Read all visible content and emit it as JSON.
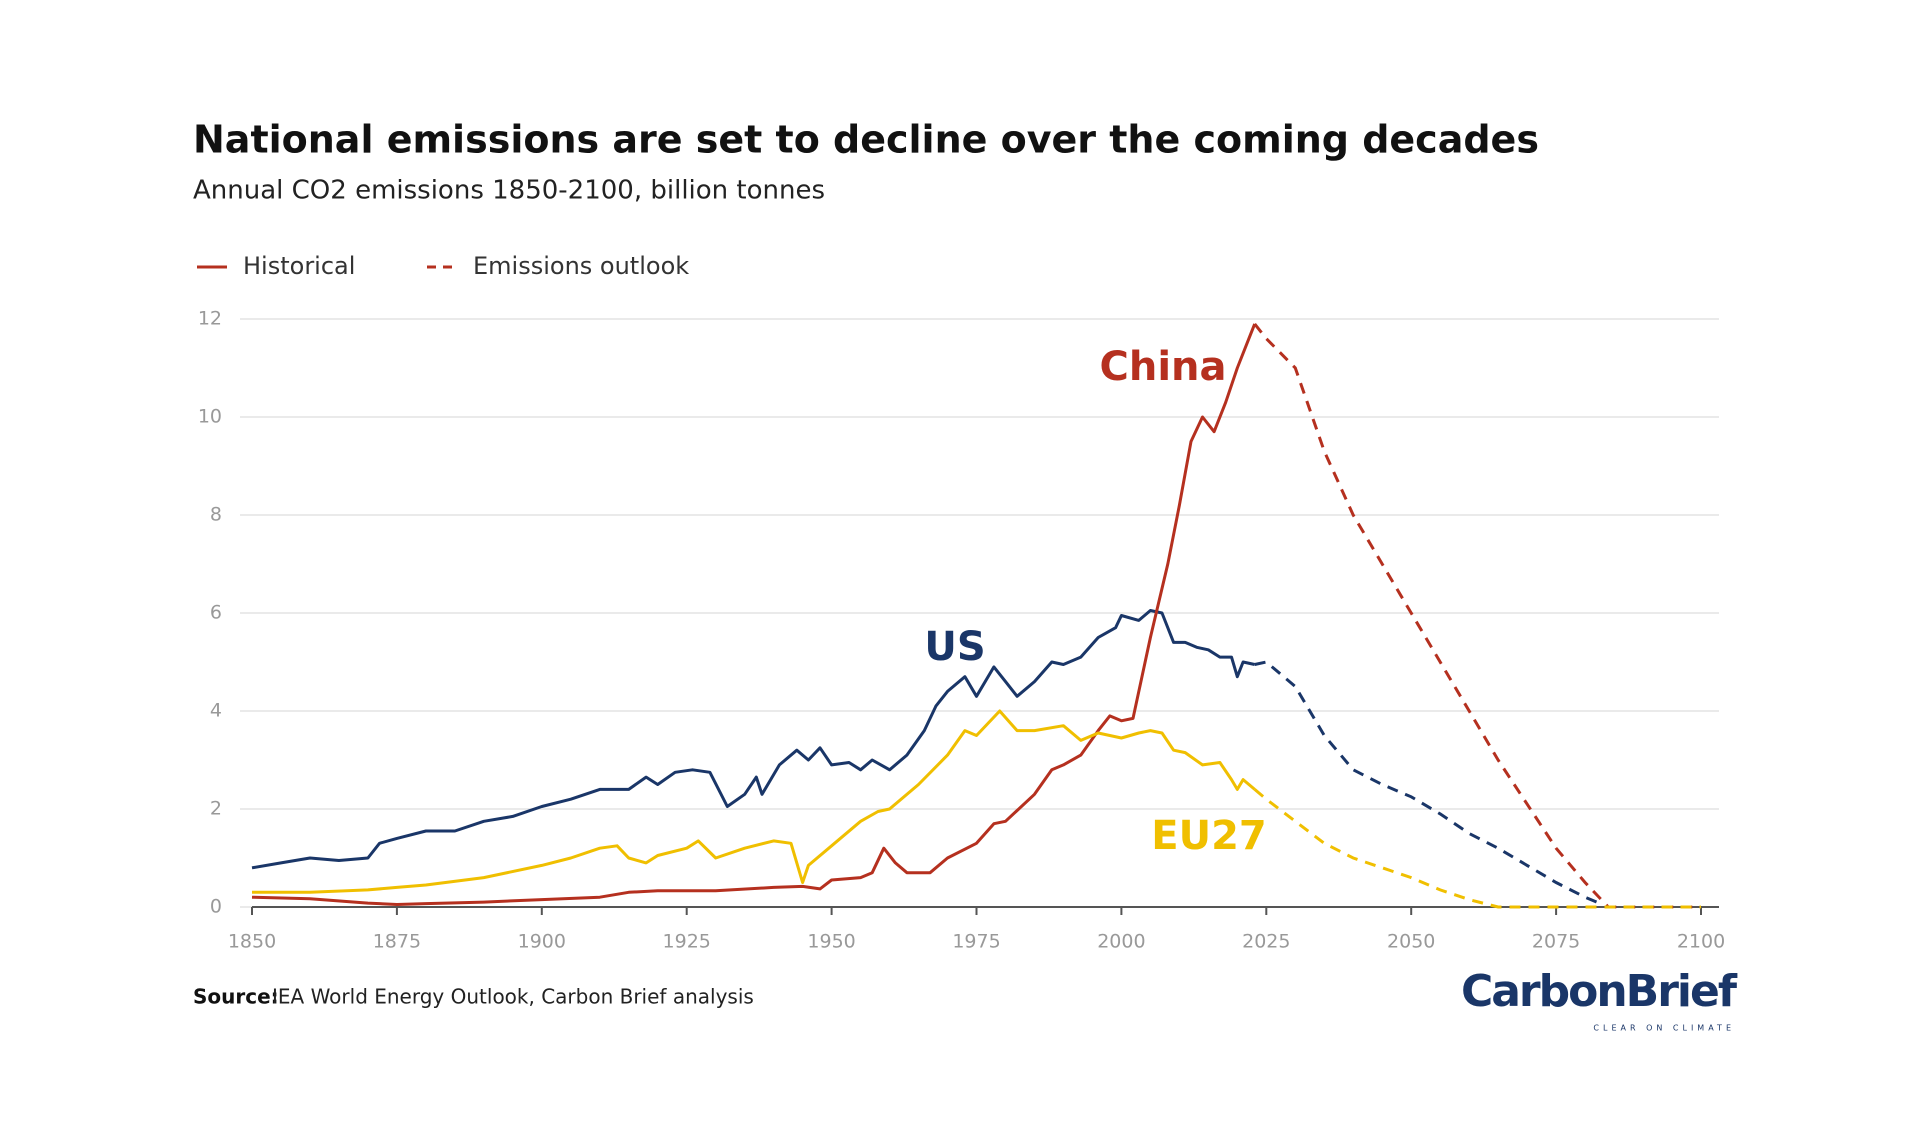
{
  "chart_data": {
    "type": "line",
    "title": "National emissions are set to decline over the coming decades",
    "subtitle": "Annual CO2 emissions 1850-2100, billion tonnes",
    "legend": [
      {
        "label": "Historical",
        "dashed": false,
        "color": "#b5301f"
      },
      {
        "label": "Emissions outlook",
        "dashed": true,
        "color": "#b5301f"
      }
    ],
    "xlim": [
      1850,
      2100
    ],
    "xticks": [
      1850,
      1875,
      1900,
      1925,
      1950,
      1975,
      2000,
      2025,
      2050,
      2075,
      2100
    ],
    "ylim": [
      0,
      12
    ],
    "yticks": [
      0,
      2,
      4,
      6,
      8,
      10,
      12
    ],
    "grid": true,
    "series": [
      {
        "name": "US",
        "color": "#1a3668",
        "x": [
          1850,
          1855,
          1860,
          1865,
          1870,
          1872,
          1875,
          1880,
          1885,
          1890,
          1895,
          1900,
          1905,
          1910,
          1915,
          1918,
          1920,
          1923,
          1926,
          1929,
          1932,
          1935,
          1937,
          1938,
          1941,
          1944,
          1946,
          1948,
          1950,
          1953,
          1955,
          1957,
          1960,
          1963,
          1966,
          1968,
          1970,
          1973,
          1975,
          1978,
          1980,
          1982,
          1985,
          1988,
          1990,
          1993,
          1996,
          1999,
          2000,
          2003,
          2005,
          2007,
          2009,
          2011,
          2013,
          2015,
          2017,
          2019,
          2020,
          2021,
          2023
        ],
        "values": [
          0.8,
          0.9,
          1.0,
          0.95,
          1.0,
          1.3,
          1.4,
          1.55,
          1.55,
          1.75,
          1.85,
          2.05,
          2.2,
          2.4,
          2.4,
          2.65,
          2.5,
          2.75,
          2.8,
          2.75,
          2.05,
          2.3,
          2.65,
          2.3,
          2.9,
          3.2,
          3.0,
          3.25,
          2.9,
          2.95,
          2.8,
          3.0,
          2.8,
          3.1,
          3.6,
          4.1,
          4.4,
          4.7,
          4.3,
          4.9,
          4.6,
          4.3,
          4.6,
          5.0,
          4.95,
          5.1,
          5.5,
          5.7,
          5.95,
          5.85,
          6.05,
          6.0,
          5.4,
          5.4,
          5.3,
          5.25,
          5.1,
          5.1,
          4.7,
          5.0,
          4.95
        ],
        "outlook": {
          "x": [
            2023,
            2025,
            2030,
            2035,
            2040,
            2045,
            2050,
            2055,
            2060,
            2065,
            2070,
            2075,
            2080,
            2083
          ],
          "values": [
            4.95,
            5.0,
            4.5,
            3.5,
            2.8,
            2.5,
            2.25,
            1.9,
            1.5,
            1.2,
            0.85,
            0.5,
            0.2,
            0.05
          ]
        }
      },
      {
        "name": "China",
        "color": "#b5301f",
        "x": [
          1850,
          1860,
          1870,
          1875,
          1880,
          1890,
          1900,
          1910,
          1915,
          1920,
          1930,
          1940,
          1945,
          1948,
          1950,
          1955,
          1957,
          1959,
          1961,
          1963,
          1967,
          1970,
          1975,
          1978,
          1980,
          1985,
          1988,
          1990,
          1993,
          1996,
          1998,
          2000,
          2002,
          2005,
          2008,
          2010,
          2012,
          2014,
          2016,
          2018,
          2020,
          2022,
          2023
        ],
        "values": [
          0.2,
          0.17,
          0.08,
          0.05,
          0.07,
          0.1,
          0.15,
          0.2,
          0.3,
          0.33,
          0.33,
          0.4,
          0.42,
          0.37,
          0.55,
          0.6,
          0.7,
          1.2,
          0.9,
          0.7,
          0.7,
          1.0,
          1.3,
          1.7,
          1.75,
          2.3,
          2.8,
          2.9,
          3.1,
          3.6,
          3.9,
          3.8,
          3.85,
          5.5,
          7.0,
          8.2,
          9.5,
          10.0,
          9.7,
          10.3,
          11.0,
          11.6,
          11.9
        ],
        "outlook": {
          "x": [
            2023,
            2025,
            2030,
            2035,
            2040,
            2045,
            2050,
            2055,
            2060,
            2065,
            2070,
            2075,
            2080,
            2084,
            2100
          ],
          "values": [
            11.9,
            11.6,
            11.0,
            9.3,
            8.0,
            7.0,
            6.0,
            5.0,
            4.0,
            3.0,
            2.1,
            1.2,
            0.5,
            0.0,
            0.0
          ]
        }
      },
      {
        "name": "EU27",
        "color": "#f0bf00",
        "x": [
          1850,
          1860,
          1870,
          1875,
          1880,
          1890,
          1900,
          1905,
          1910,
          1913,
          1915,
          1918,
          1920,
          1925,
          1927,
          1930,
          1935,
          1940,
          1943,
          1945,
          1946,
          1950,
          1955,
          1958,
          1960,
          1965,
          1970,
          1973,
          1975,
          1979,
          1982,
          1985,
          1990,
          1993,
          1996,
          2000,
          2003,
          2005,
          2007,
          2009,
          2011,
          2014,
          2017,
          2019,
          2020,
          2021,
          2023
        ],
        "values": [
          0.3,
          0.3,
          0.35,
          0.4,
          0.45,
          0.6,
          0.85,
          1.0,
          1.2,
          1.25,
          1.0,
          0.9,
          1.05,
          1.2,
          1.35,
          1.0,
          1.2,
          1.35,
          1.3,
          0.5,
          0.85,
          1.25,
          1.75,
          1.95,
          2.0,
          2.5,
          3.1,
          3.6,
          3.5,
          4.0,
          3.6,
          3.6,
          3.7,
          3.4,
          3.55,
          3.45,
          3.55,
          3.6,
          3.55,
          3.2,
          3.15,
          2.9,
          2.95,
          2.6,
          2.4,
          2.6,
          2.4
        ],
        "outlook": {
          "x": [
            2023,
            2025,
            2030,
            2035,
            2040,
            2045,
            2050,
            2055,
            2060,
            2065,
            2100
          ],
          "values": [
            2.4,
            2.2,
            1.75,
            1.3,
            1.0,
            0.8,
            0.6,
            0.35,
            0.15,
            0.0,
            0.0
          ]
        }
      }
    ],
    "source_label": "Source:",
    "source": "IEA World Energy Outlook, Carbon Brief analysis",
    "logo": {
      "name": "CarbonBrief",
      "tagline": "CLEAR ON CLIMATE"
    }
  }
}
